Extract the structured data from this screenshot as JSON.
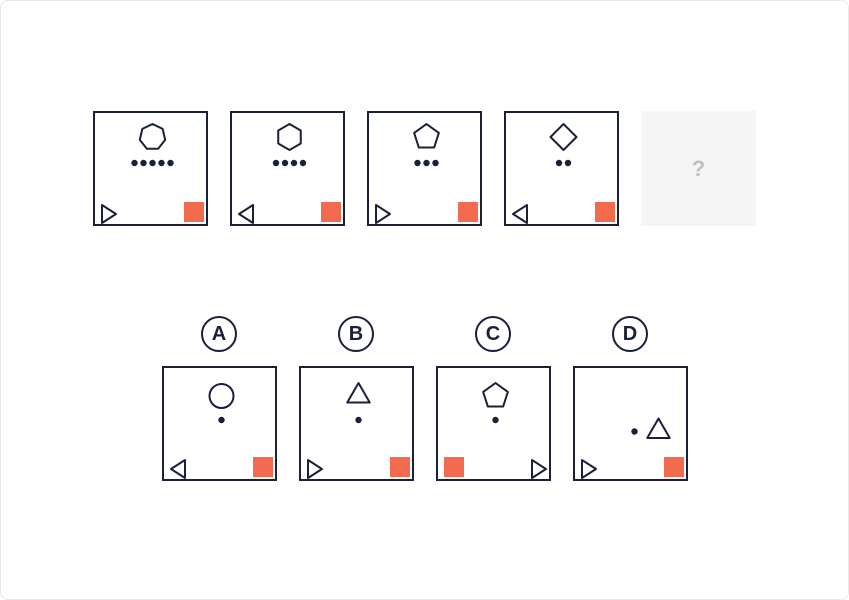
{
  "colors": {
    "stroke": "#1a1f3a",
    "accent": "#f26b4e",
    "dot": "#1a1f3a",
    "placeholder_bg": "#f5f5f5",
    "placeholder_text": "#c0c0c0",
    "bg": "#ffffff"
  },
  "stroke_width": 2,
  "tile_size": 115,
  "sequence": [
    {
      "poly_sides": 7,
      "dots": 5,
      "arrow_dir": "right"
    },
    {
      "poly_sides": 6,
      "dots": 4,
      "arrow_dir": "left"
    },
    {
      "poly_sides": 5,
      "dots": 3,
      "arrow_dir": "right"
    },
    {
      "poly_sides": 4,
      "dots": 2,
      "arrow_dir": "left"
    }
  ],
  "placeholder_label": "?",
  "answers": [
    {
      "label": "A",
      "shape": "circle",
      "dots": 1,
      "arrow_dir": "left",
      "arrow_corner": "bl",
      "square_corner": "br"
    },
    {
      "label": "B",
      "shape": "triangle",
      "dots": 1,
      "arrow_dir": "right",
      "arrow_corner": "bl",
      "square_corner": "br"
    },
    {
      "label": "C",
      "shape": "pentagon",
      "dots": 1,
      "arrow_dir": "right",
      "arrow_corner": "br",
      "square_corner": "bl"
    },
    {
      "label": "D",
      "shape": "triangle_right",
      "dots": 1,
      "arrow_dir": "right",
      "arrow_corner": "bl",
      "square_corner": "br",
      "dot_offset": "left"
    }
  ]
}
